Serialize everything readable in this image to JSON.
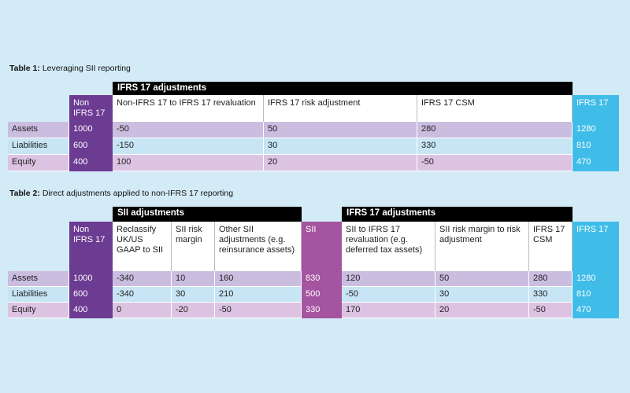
{
  "tables": [
    {
      "caption_label": "Table 1:",
      "caption": "Leveraging SII reporting",
      "groups": [
        "IFRS 17 adjustments"
      ],
      "columns": [
        "Non IFRS 17",
        "Non-IFRS 17 to IFRS 17 revaluation",
        "IFRS 17 risk adjustment",
        "IFRS 17 CSM",
        "IFRS 17"
      ],
      "rows": [
        {
          "label": "Assets",
          "values": [
            1000,
            -50,
            50,
            280,
            1280
          ]
        },
        {
          "label": "Liabilities",
          "values": [
            600,
            -150,
            30,
            330,
            810
          ]
        },
        {
          "label": "Equity",
          "values": [
            400,
            100,
            20,
            -50,
            470
          ]
        }
      ]
    },
    {
      "caption_label": "Table 2:",
      "caption": "Direct adjustments applied to non-IFRS 17 reporting",
      "groups": [
        "SII adjustments",
        "IFRS 17 adjustments"
      ],
      "columns": [
        "Non IFRS 17",
        "Reclassify UK/US GAAP to SII",
        "SII risk margin",
        "Other SII adjustments (e.g. reinsurance assets)",
        "SII",
        "SII to IFRS 17 revaluation (e.g. deferred tax assets)",
        "SII risk margin to risk adjustment",
        "IFRS 17 CSM",
        "IFRS 17"
      ],
      "rows": [
        {
          "label": "Assets",
          "values": [
            1000,
            -340,
            10,
            160,
            830,
            120,
            50,
            280,
            1280
          ]
        },
        {
          "label": "Liabilities",
          "values": [
            600,
            -340,
            30,
            210,
            500,
            -50,
            30,
            330,
            810
          ]
        },
        {
          "label": "Equity",
          "values": [
            400,
            0,
            -20,
            -50,
            330,
            170,
            20,
            -50,
            470
          ]
        }
      ]
    }
  ]
}
